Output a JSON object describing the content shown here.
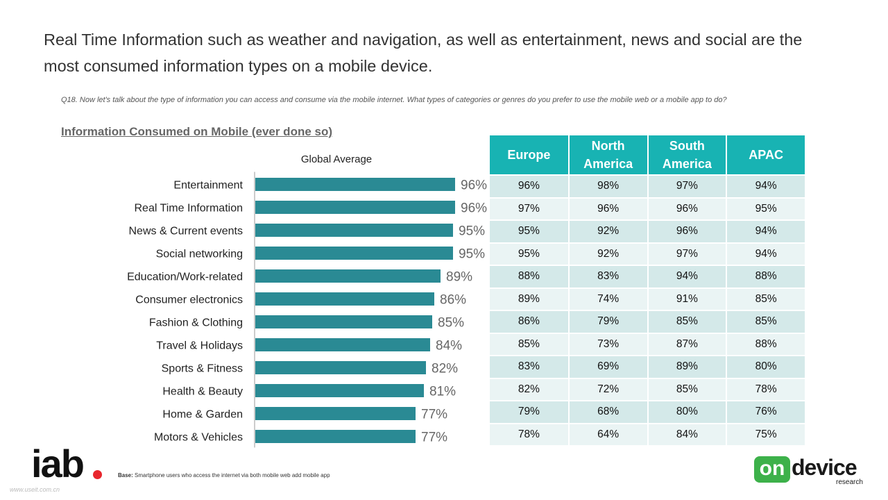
{
  "header": {
    "title": "Real Time Information such as weather and navigation, as well as entertainment, news and social are the most consumed information types on a mobile device.",
    "question": "Q18. Now let's talk about the type of information you can access and consume via the mobile internet. What types of categories or genres do you prefer to use the mobile web or a mobile app to do?",
    "subtitle": "Information Consumed on Mobile (ever done so)"
  },
  "chart_data": {
    "type": "bar",
    "orientation": "horizontal",
    "title": "Global Average",
    "categories": [
      "Entertainment",
      "Real Time Information",
      "News & Current events",
      "Social networking",
      "Education/Work-related",
      "Consumer electronics",
      "Fashion & Clothing",
      "Travel & Holidays",
      "Sports & Fitness",
      "Health & Beauty",
      "Home & Garden",
      "Motors & Vehicles"
    ],
    "values": [
      96,
      96,
      95,
      95,
      89,
      86,
      85,
      84,
      82,
      81,
      77,
      77
    ],
    "labels": [
      "96%",
      "96%",
      "95%",
      "95%",
      "89%",
      "86%",
      "85%",
      "84%",
      "82%",
      "81%",
      "77%",
      "77%"
    ],
    "unit": "%",
    "xlim": [
      0,
      100
    ],
    "bar_color": "#2a8a94"
  },
  "region_table": {
    "headers": [
      "Europe",
      "North America",
      "South America",
      "APAC"
    ],
    "rows": [
      [
        "96%",
        "98%",
        "97%",
        "94%"
      ],
      [
        "97%",
        "96%",
        "96%",
        "95%"
      ],
      [
        "95%",
        "92%",
        "96%",
        "94%"
      ],
      [
        "95%",
        "92%",
        "97%",
        "94%"
      ],
      [
        "88%",
        "83%",
        "94%",
        "88%"
      ],
      [
        "89%",
        "74%",
        "91%",
        "85%"
      ],
      [
        "86%",
        "79%",
        "85%",
        "85%"
      ],
      [
        "85%",
        "73%",
        "87%",
        "88%"
      ],
      [
        "83%",
        "69%",
        "89%",
        "80%"
      ],
      [
        "82%",
        "72%",
        "85%",
        "78%"
      ],
      [
        "79%",
        "68%",
        "80%",
        "76%"
      ],
      [
        "78%",
        "64%",
        "84%",
        "75%"
      ]
    ],
    "header_color": "#18b3b3"
  },
  "footer": {
    "iab_logo": "iab",
    "base_label": "Base:",
    "base_text": "Smartphone users who access the internet via both mobile web add mobile app",
    "watermark": "www.useit.com.cn",
    "ondevice_on": "on",
    "ondevice_device": "device",
    "ondevice_research": "research",
    "accent_green": "#3db14a",
    "accent_red": "#e8262d"
  }
}
